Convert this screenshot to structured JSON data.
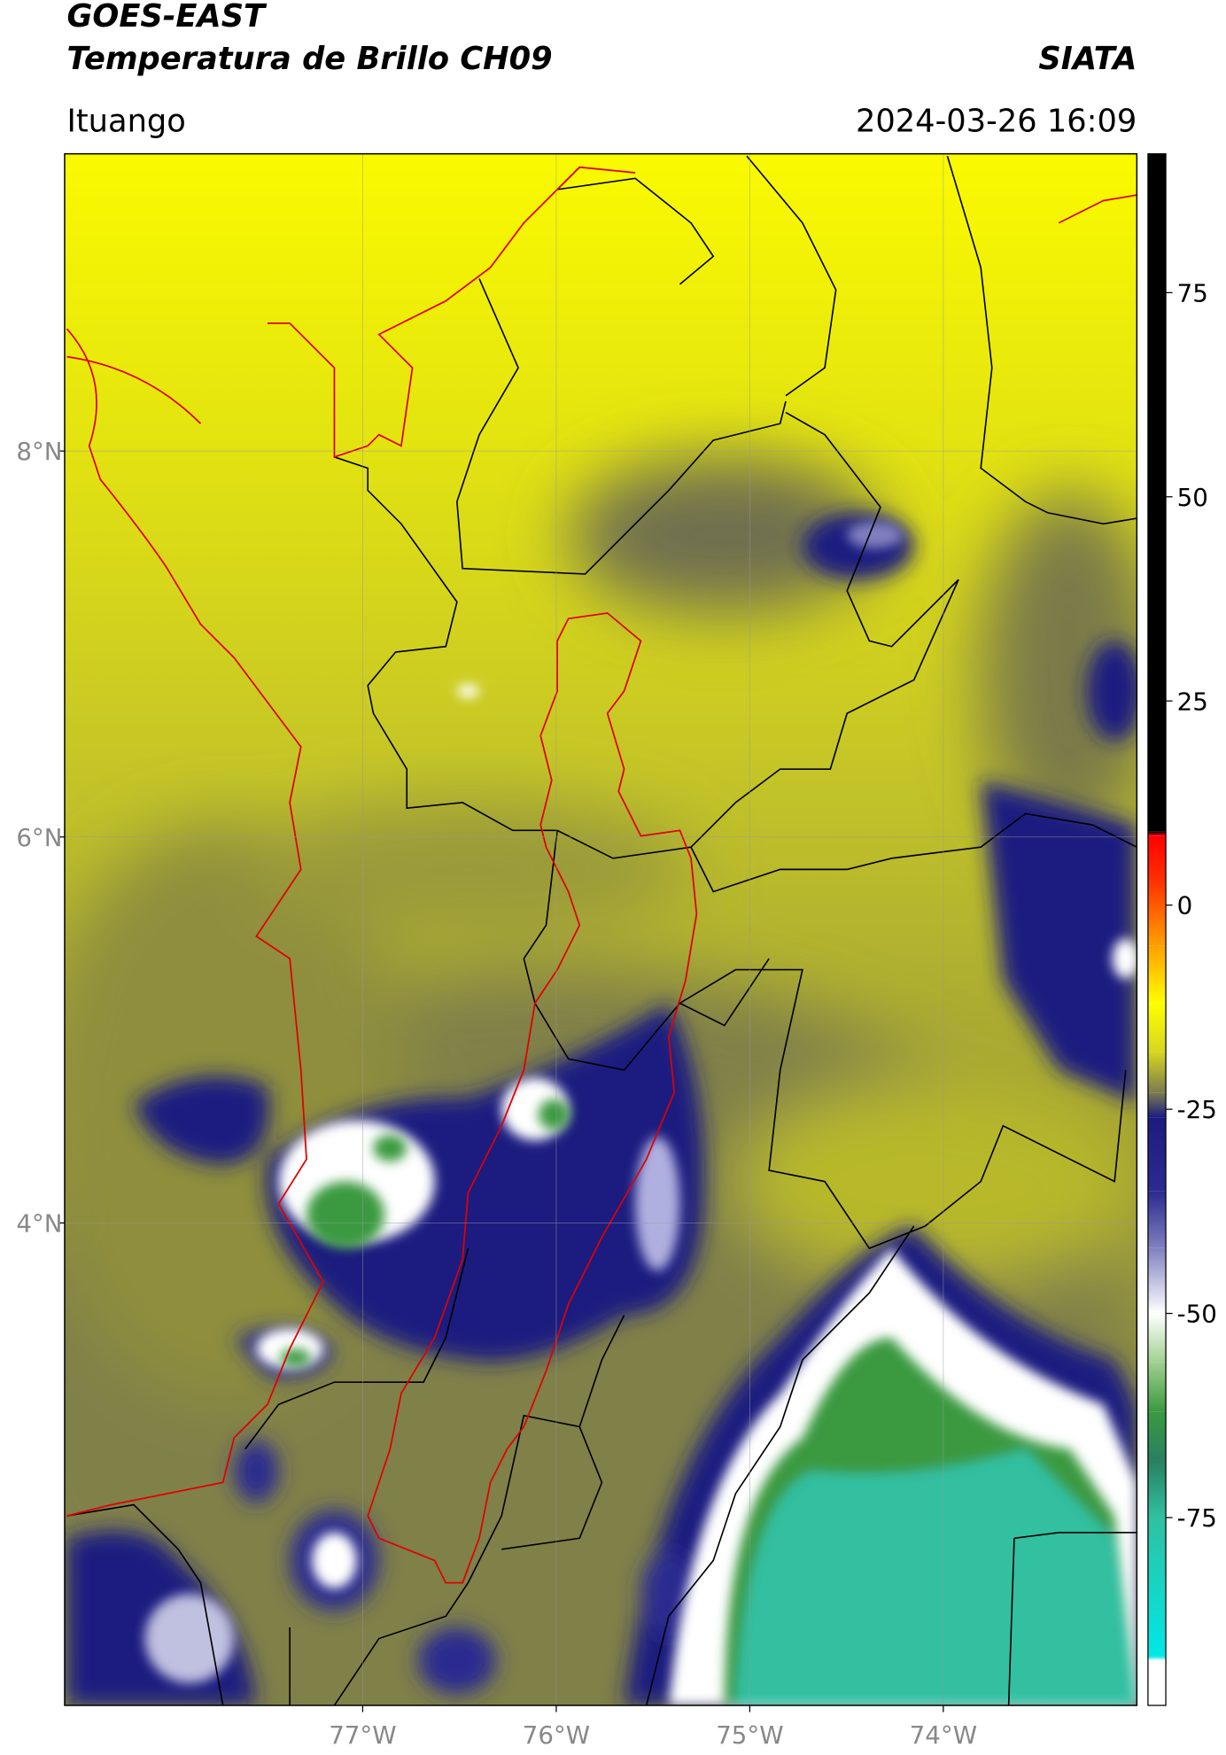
{
  "header": {
    "title_line1": "GOES-EAST",
    "title_line2": "Temperatura de Brillo CH09",
    "source": "SIATA",
    "location": "Ituango",
    "datetime": "2024-03-26 16:09"
  },
  "map": {
    "xlim": [
      -78.54,
      -73.0
    ],
    "ylim": [
      1.5,
      9.54
    ],
    "xticks": [
      {
        "value": -77,
        "label": "77°W"
      },
      {
        "value": -76,
        "label": "76°W"
      },
      {
        "value": -75,
        "label": "75°W"
      },
      {
        "value": -74,
        "label": "74°W"
      }
    ],
    "yticks": [
      {
        "value": 4,
        "label": "4°N"
      },
      {
        "value": 6,
        "label": "6°N"
      },
      {
        "value": 8,
        "label": "8°N"
      }
    ],
    "grid": true
  },
  "colorbar": {
    "lim": [
      -98,
      92
    ],
    "ticks": [
      -75,
      -50,
      -25,
      0,
      25,
      50,
      75
    ],
    "stops": [
      {
        "value": 92,
        "color": "#000000"
      },
      {
        "value": 9,
        "color": "#000000"
      },
      {
        "value": 8.5,
        "color": "#ff0000"
      },
      {
        "value": 3,
        "color": "#ff3000"
      },
      {
        "value": -5,
        "color": "#ffa000"
      },
      {
        "value": -12,
        "color": "#ffff00"
      },
      {
        "value": -18,
        "color": "#d6d620"
      },
      {
        "value": -23,
        "color": "#7a7a50"
      },
      {
        "value": -26,
        "color": "#1c1c80"
      },
      {
        "value": -35,
        "color": "#2a2a90"
      },
      {
        "value": -42,
        "color": "#8080c0"
      },
      {
        "value": -50,
        "color": "#ffffff"
      },
      {
        "value": -56,
        "color": "#a0d090"
      },
      {
        "value": -62,
        "color": "#3a9a40"
      },
      {
        "value": -68,
        "color": "#2a8060"
      },
      {
        "value": -75,
        "color": "#30c0a0"
      },
      {
        "value": -92,
        "color": "#00e8e8"
      },
      {
        "value": -92.5,
        "color": "#ffffff"
      },
      {
        "value": -98,
        "color": "#ffffff"
      }
    ]
  }
}
